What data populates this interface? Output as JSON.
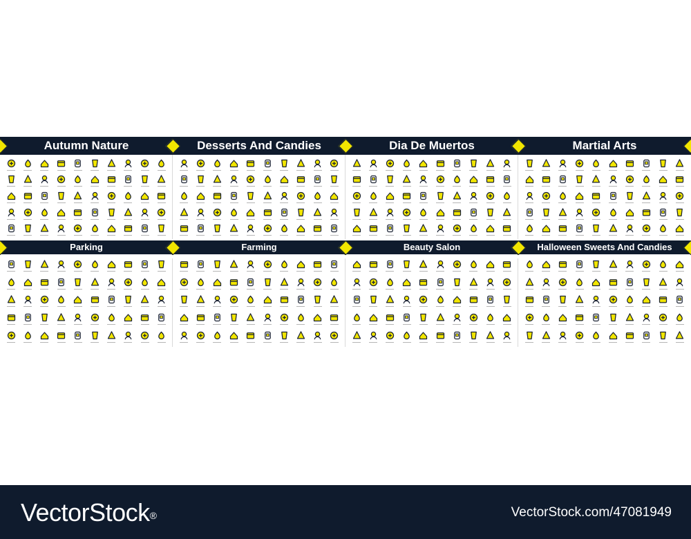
{
  "panels": [
    {
      "title": "Autumn Nature"
    },
    {
      "title": "Desserts And Candies"
    },
    {
      "title": "Dia De Muertos"
    },
    {
      "title": "Martial Arts"
    },
    {
      "title": "Parking"
    },
    {
      "title": "Farming"
    },
    {
      "title": "Beauty Salon"
    },
    {
      "title": "Halloween Sweets And Candies"
    }
  ],
  "footer": {
    "brand": "VectorStock",
    "registered_mark": "®",
    "url": "VectorStock.com/47081949"
  },
  "colors": {
    "navy": "#0f1b2d",
    "accent_yellow": "#f2e600",
    "stroke": "#1a2233"
  },
  "icon_grid": {
    "columns": 10,
    "rows": 5
  }
}
